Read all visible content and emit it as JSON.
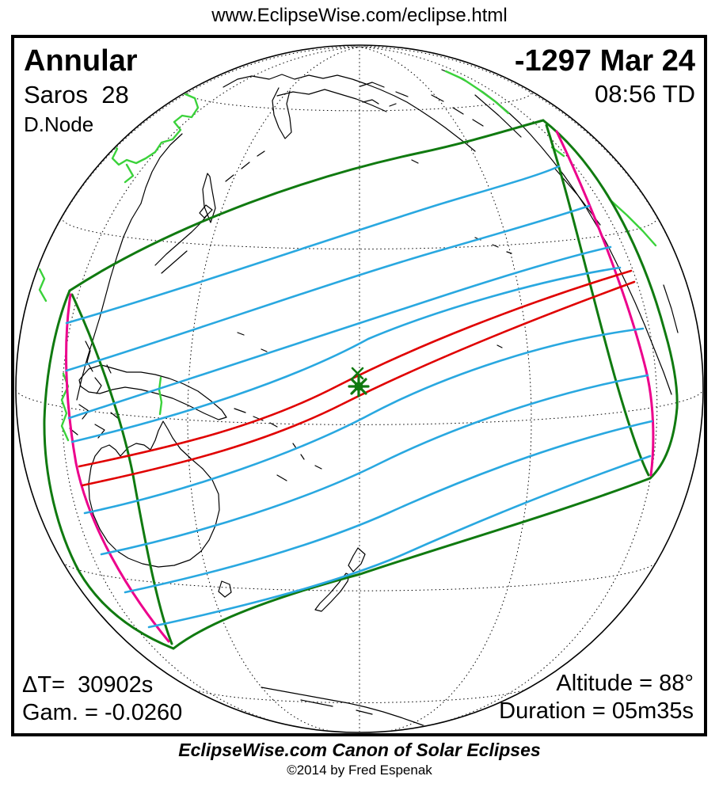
{
  "header": {
    "url": "www.EclipseWise.com/eclipse.html"
  },
  "eclipse": {
    "type_label": "Annular",
    "saros_label": "Saros  28",
    "node_label": "D.Node",
    "date_label": "-1297 Mar 24",
    "time_label": "08:56 TD",
    "delta_t_label": "ΔT=  30902s",
    "gamma_label": "Gam. = -0.0260",
    "altitude_label": "Altitude = 88°",
    "duration_label": "Duration = 05m35s"
  },
  "footer": {
    "title": "EclipseWise.com Canon of Solar Eclipses",
    "copyright": "©2014 by Fred Espenak"
  },
  "map": {
    "marker_label": "greatest-eclipse",
    "colors": {
      "penumbral_limit_green": "#107a10",
      "coast_highlight_green": "#3bd23b",
      "sunrise_sunset_magenta": "#ec008c",
      "time_curve_blue": "#29a8e0",
      "central_path_red": "#e00000",
      "coastline_black": "#000000",
      "graticule_black": "#000000",
      "limb_black": "#000000",
      "background_white": "#ffffff"
    }
  }
}
